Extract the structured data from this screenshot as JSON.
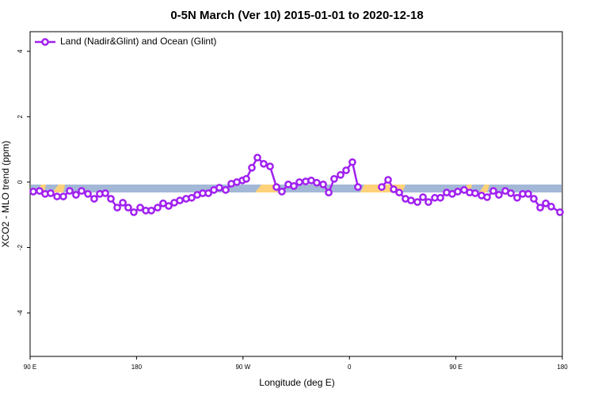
{
  "chart_data": {
    "type": "line",
    "title": "0-5N March (Ver 10)   2015-01-01 to 2020-12-18",
    "xlabel": "Longitude (deg E)",
    "ylabel": "XCO2 - MLO trend (ppm)",
    "xlim": [
      90,
      540
    ],
    "ylim": [
      -5.33,
      4.6
    ],
    "xticks": [
      {
        "value": 90,
        "label": "90 E"
      },
      {
        "value": 180,
        "label": "180"
      },
      {
        "value": 270,
        "label": "90 W"
      },
      {
        "value": 360,
        "label": "0"
      },
      {
        "value": 450,
        "label": "90 E"
      },
      {
        "value": 540,
        "label": "180"
      }
    ],
    "yticks": [
      -4,
      -2,
      0,
      2,
      4
    ],
    "legend": "top-left",
    "x": [
      92.7,
      98.0,
      102.7,
      107.4,
      112.8,
      118.1,
      123.5,
      128.8,
      133.5,
      138.9,
      144.2,
      148.9,
      153.6,
      158.3,
      163.7,
      168.4,
      173.0,
      177.7,
      183.1,
      187.8,
      192.5,
      197.8,
      202.5,
      207.2,
      211.9,
      216.6,
      221.9,
      226.6,
      231.3,
      236.0,
      240.7,
      245.4,
      250.0,
      255.4,
      260.1,
      264.8,
      269.5,
      272.8,
      277.5,
      282.2,
      287.5,
      292.9,
      298.3,
      302.9,
      308.3,
      313.0,
      317.7,
      323.0,
      327.7,
      332.4,
      337.8,
      342.5,
      347.1,
      352.5,
      357.2,
      362.5,
      367.2,
      null,
      387.3,
      392.7,
      397.4,
      402.1,
      407.4,
      412.1,
      417.5,
      422.2,
      426.8,
      432.2,
      436.9,
      442.2,
      446.9,
      451.6,
      457.0,
      461.7,
      466.3,
      471.7,
      476.4,
      481.7,
      486.4,
      491.8,
      496.5,
      501.8,
      506.5,
      511.2,
      515.9,
      521.3,
      526.0,
      530.6,
      538.0
    ],
    "series": [
      {
        "name": "Land (Nadir&Glint) and Ocean (Glint)",
        "color": "#a020f0",
        "values": [
          -0.29,
          -0.27,
          -0.36,
          -0.34,
          -0.44,
          -0.44,
          -0.27,
          -0.39,
          -0.27,
          -0.36,
          -0.51,
          -0.36,
          -0.34,
          -0.51,
          -0.78,
          -0.63,
          -0.78,
          -0.92,
          -0.78,
          -0.87,
          -0.87,
          -0.78,
          -0.65,
          -0.73,
          -0.63,
          -0.56,
          -0.51,
          -0.48,
          -0.39,
          -0.34,
          -0.34,
          -0.24,
          -0.17,
          -0.24,
          -0.05,
          0,
          0.05,
          0.1,
          0.44,
          0.75,
          0.56,
          0.48,
          -0.15,
          -0.29,
          -0.07,
          -0.12,
          0,
          0.02,
          0.05,
          -0.02,
          -0.07,
          -0.32,
          0.1,
          0.22,
          0.36,
          0.61,
          -0.15,
          null,
          -0.15,
          0.07,
          -0.22,
          -0.32,
          -0.51,
          -0.56,
          -0.61,
          -0.46,
          -0.61,
          -0.48,
          -0.48,
          -0.32,
          -0.36,
          -0.29,
          -0.24,
          -0.32,
          -0.34,
          -0.41,
          -0.46,
          -0.27,
          -0.39,
          -0.27,
          -0.34,
          -0.48,
          -0.36,
          -0.36,
          -0.51,
          -0.78,
          -0.65,
          -0.75,
          -0.92
        ]
      }
    ]
  }
}
